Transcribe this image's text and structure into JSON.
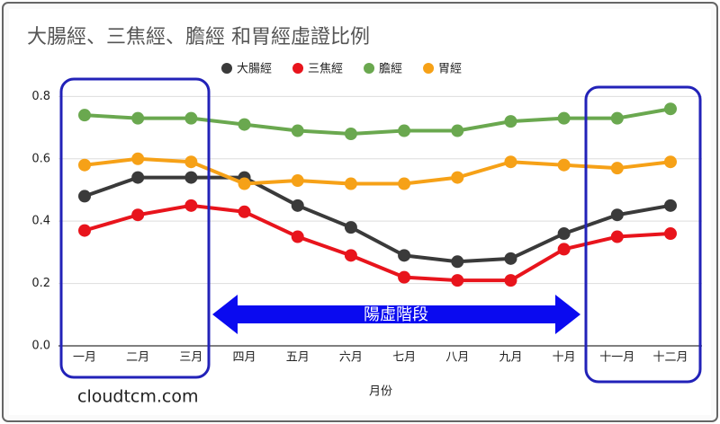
{
  "chart_data": {
    "type": "line",
    "title": "大腸經、三焦經、膽經 和胃經虛證比例",
    "x_label": "月份",
    "categories": [
      "一月",
      "二月",
      "三月",
      "四月",
      "五月",
      "六月",
      "七月",
      "八月",
      "九月",
      "十月",
      "十一月",
      "十二月"
    ],
    "series": [
      {
        "name": "大腸經",
        "color": "#3a3a3a",
        "values": [
          0.48,
          0.54,
          0.54,
          0.54,
          0.45,
          0.38,
          0.29,
          0.27,
          0.28,
          0.36,
          0.42,
          0.45
        ]
      },
      {
        "name": "三焦經",
        "color": "#e8141c",
        "values": [
          0.37,
          0.42,
          0.45,
          0.43,
          0.35,
          0.29,
          0.22,
          0.21,
          0.21,
          0.31,
          0.35,
          0.36
        ]
      },
      {
        "name": "膽經",
        "color": "#6aa84f",
        "values": [
          0.74,
          0.73,
          0.73,
          0.71,
          0.69,
          0.68,
          0.69,
          0.69,
          0.72,
          0.73,
          0.73,
          0.76
        ]
      },
      {
        "name": "胃經",
        "color": "#f6a117",
        "values": [
          0.58,
          0.6,
          0.59,
          0.52,
          0.53,
          0.52,
          0.52,
          0.54,
          0.59,
          0.58,
          0.57,
          0.59
        ]
      }
    ],
    "ylim": [
      0,
      0.85
    ],
    "yticks": [
      {
        "value": 0,
        "label": "0.0"
      },
      0.2,
      0.4,
      0.6,
      0.8
    ],
    "grid": true,
    "legend": "top",
    "annotations": [
      {
        "text": "陽虛階段"
      }
    ],
    "watermark": "cloudtcm.com"
  }
}
